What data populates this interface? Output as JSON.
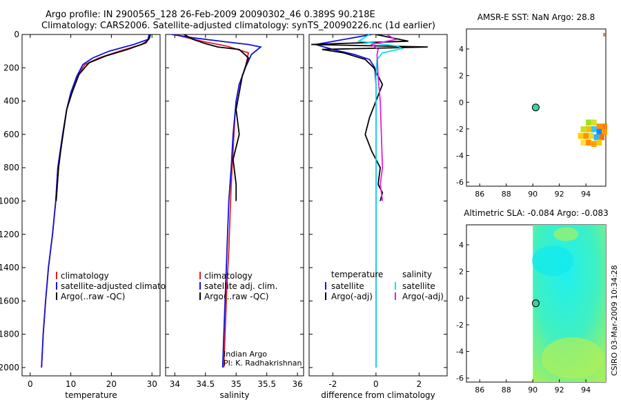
{
  "title_line1": "Argo profile: IN 2900565_128 26-Feb-2009 20090302_46 0.389S 90.218E",
  "title_line2": "Climatology: CARS2006. Satellite-adjusted climatology: synTS_20090226.nc (1d earlier)",
  "side_label": "CSIRO 03-Mar-2009 10:34:28",
  "colors": {
    "climatology": "#e02020",
    "satellite": "#1010e0",
    "argo": "#000000",
    "sat_diff_sal": "#00e0f0",
    "argo_diff_sal": "#e020e0",
    "marker": "#40d0a0"
  },
  "chart_data": [
    {
      "type": "line",
      "id": "temperature",
      "xlabel": "temperature",
      "ylabel": "",
      "xlim": [
        -2,
        32
      ],
      "ylim": [
        2050,
        0
      ],
      "y_inverted": true,
      "xticks": [
        0,
        10,
        20,
        30
      ],
      "yticks": [
        0,
        200,
        400,
        600,
        800,
        1000,
        1200,
        1400,
        1600,
        1800,
        2000
      ],
      "legend": [
        "climatology",
        "satellite-adjusted climatology",
        "Argo(..raw -QC)"
      ],
      "series": [
        {
          "name": "climatology",
          "color": "climatology",
          "x": [
            29.5,
            29.2,
            27.5,
            22.0,
            17.0,
            13.5,
            11.5,
            10.0,
            9.0,
            8.0,
            7.4,
            6.8,
            6.3,
            5.5,
            4.5,
            3.8,
            3.2,
            2.8
          ],
          "y": [
            0,
            30,
            60,
            100,
            140,
            180,
            250,
            350,
            450,
            600,
            700,
            800,
            1000,
            1200,
            1400,
            1600,
            1800,
            2000
          ]
        },
        {
          "name": "satellite-adjusted climatology",
          "color": "satellite",
          "x": [
            29.3,
            29.0,
            25.5,
            19.5,
            15.5,
            13.0,
            11.5,
            10.0,
            9.0,
            8.0,
            7.4,
            6.8,
            6.3,
            5.5,
            4.5,
            3.8,
            3.2,
            2.8
          ],
          "y": [
            0,
            30,
            60,
            100,
            140,
            180,
            250,
            350,
            450,
            600,
            700,
            800,
            1000,
            1200,
            1400,
            1600,
            1800,
            2000
          ]
        },
        {
          "name": "Argo(..raw -QC)",
          "color": "argo",
          "x": [
            29.6,
            29.4,
            28.5,
            24.0,
            18.5,
            14.5,
            12.0,
            10.3,
            9.0,
            8.1,
            7.5,
            7.0,
            6.4
          ],
          "y": [
            0,
            20,
            50,
            90,
            130,
            170,
            240,
            350,
            450,
            600,
            700,
            800,
            1000
          ]
        }
      ]
    },
    {
      "type": "line",
      "id": "salinity",
      "xlabel": "salinity",
      "ylabel": "",
      "xlim": [
        33.85,
        36.1
      ],
      "ylim": [
        2050,
        0
      ],
      "y_inverted": true,
      "xticks": [
        34,
        34.5,
        35,
        35.5,
        36
      ],
      "tick_labels": [
        "34",
        "34.5",
        "35",
        "35.5",
        "36"
      ],
      "legend": [
        "climatology",
        "satellite adj. clim.",
        "Argo(..raw -QC)"
      ],
      "annotation": [
        "Indian Argo",
        "PI: K. Radhakrishnan"
      ],
      "series": [
        {
          "name": "climatology",
          "color": "climatology",
          "x": [
            34.0,
            34.2,
            34.5,
            34.85,
            35.2,
            35.15,
            35.05,
            35.0,
            34.98,
            34.95,
            34.92,
            34.9,
            34.88,
            34.85,
            34.82,
            34.8
          ],
          "y": [
            0,
            20,
            45,
            70,
            110,
            200,
            300,
            400,
            500,
            700,
            900,
            1100,
            1300,
            1500,
            1800,
            2000
          ]
        },
        {
          "name": "satellite adj. clim.",
          "color": "satellite",
          "x": [
            33.95,
            34.3,
            34.85,
            35.2,
            35.4,
            35.25,
            35.15,
            35.05,
            35.0,
            34.95,
            34.92,
            34.88,
            34.86,
            34.83,
            34.8,
            34.78
          ],
          "y": [
            0,
            20,
            45,
            60,
            75,
            120,
            200,
            300,
            400,
            600,
            800,
            1000,
            1200,
            1500,
            1800,
            2000
          ]
        },
        {
          "name": "Argo(..raw -QC)",
          "color": "argo",
          "x": [
            34.15,
            34.3,
            34.5,
            34.7,
            35.05,
            35.2,
            35.1,
            35.05,
            35.0,
            35.05,
            34.95,
            35.0,
            35.0
          ],
          "y": [
            0,
            30,
            55,
            75,
            90,
            140,
            250,
            350,
            450,
            600,
            750,
            900,
            1000
          ]
        }
      ]
    },
    {
      "type": "line",
      "id": "difference",
      "xlabel": "difference from climatology",
      "ylabel": "",
      "xlim": [
        -3.1,
        3.3
      ],
      "ylim": [
        2050,
        0
      ],
      "y_inverted": true,
      "xticks": [
        -2,
        0,
        2
      ],
      "legend_temperature_title": "temperature",
      "legend_salinity_title": "salinity",
      "legend_temperature": [
        "satellite",
        "Argo(-adj)"
      ],
      "legend_salinity": [
        "satellite",
        "Argo(-adj)"
      ],
      "series": [
        {
          "name": "temperature satellite",
          "color": "satellite",
          "x": [
            -0.2,
            -1.5,
            -2.8,
            -2.0,
            -1.0,
            -0.3,
            -0.05,
            0.0,
            0.0,
            0.0,
            0.0,
            0.0,
            0.0,
            0.0,
            0.0
          ],
          "y": [
            0,
            30,
            60,
            90,
            120,
            150,
            200,
            300,
            500,
            800,
            1100,
            1400,
            1600,
            1800,
            2000
          ]
        },
        {
          "name": "temperature Argo(-adj)",
          "color": "argo",
          "x": [
            0.0,
            1.5,
            -3.0,
            2.4,
            -2.5,
            -1.5,
            -0.5,
            -0.1,
            0.3,
            -0.3,
            -0.5,
            -0.2,
            0.2,
            0.1,
            0.3,
            0.2
          ],
          "y": [
            0,
            40,
            60,
            75,
            90,
            110,
            150,
            200,
            300,
            500,
            600,
            700,
            800,
            900,
            950,
            1000
          ]
        },
        {
          "name": "salinity satellite",
          "color": "sat_diff_sal",
          "x": [
            -0.3,
            -0.8,
            1.0,
            1.2,
            0.3,
            0.05,
            0.0,
            0.0,
            0.0,
            0.0,
            0.0,
            0.0,
            0.0
          ],
          "y": [
            0,
            40,
            70,
            85,
            110,
            150,
            250,
            400,
            700,
            1000,
            1400,
            1800,
            2000
          ]
        },
        {
          "name": "salinity Argo(-adj)",
          "color": "argo_diff_sal",
          "x": [
            0.5,
            0.9,
            -0.2,
            0.1,
            0.05,
            0.1,
            0.2,
            0.25,
            0.3,
            0.2,
            0.3
          ],
          "y": [
            0,
            30,
            60,
            90,
            120,
            250,
            400,
            600,
            800,
            900,
            1000
          ]
        }
      ]
    },
    {
      "type": "heatmap",
      "id": "sst",
      "title": "AMSR-E SST: NaN Argo: 28.8",
      "xlim": [
        85,
        95.5
      ],
      "ylim": [
        -6.3,
        5.5
      ],
      "xticks": [
        86,
        88,
        90,
        92,
        94
      ],
      "yticks": [
        -6,
        -4,
        -2,
        0,
        2,
        4
      ],
      "argo_position": [
        90.22,
        -0.39
      ]
    },
    {
      "type": "heatmap",
      "id": "sla",
      "title": "Altimetric SLA: -0.084 Argo: -0.083",
      "xlim": [
        85,
        95.5
      ],
      "ylim": [
        -6.3,
        5.5
      ],
      "xticks": [
        86,
        88,
        90,
        92,
        94
      ],
      "yticks": [
        -6,
        -4,
        -2,
        0,
        2,
        4
      ],
      "data_xlim": [
        90.0,
        95.5
      ],
      "argo_position": [
        90.22,
        -0.39
      ]
    }
  ]
}
